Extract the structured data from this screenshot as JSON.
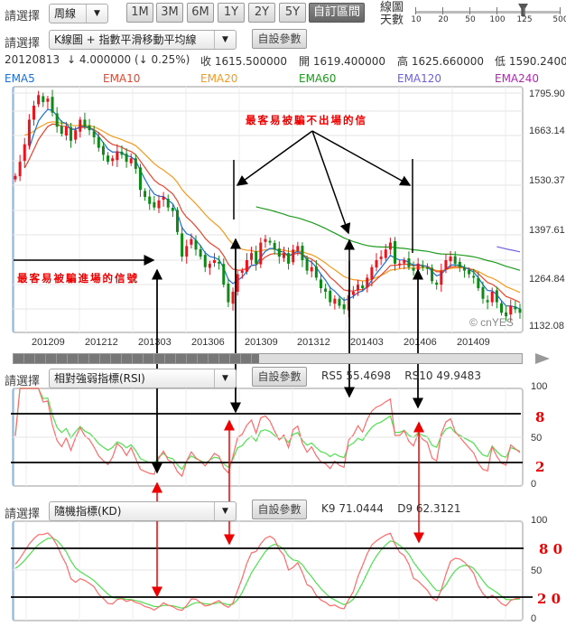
{
  "toolbar": {
    "select_label": "請選擇",
    "period_value": "周線",
    "ranges": [
      "1M",
      "3M",
      "6M",
      "1Y",
      "2Y",
      "5Y",
      "自訂區間"
    ],
    "active_range": "自訂區間",
    "days_label": "線圖\n天數",
    "days_ticks": [
      "10",
      "20",
      "50",
      "100",
      "125",
      "500"
    ],
    "days_selected": "125",
    "chart_type_value": "K線圖 + 指數平滑移動平均線",
    "custom_params": "自設參數"
  },
  "quote": {
    "date": "20120813",
    "change": "↓ 4.000000 (↓ 0.25%)",
    "close": "收 1615.500000",
    "open": "開 1619.400000",
    "high": "高 1625.660000",
    "low": "低 1590.24000"
  },
  "ema_legend": [
    {
      "label": "EMA5",
      "color": "#1a6fd6"
    },
    {
      "label": "EMA10",
      "color": "#e8452c"
    },
    {
      "label": "EMA20",
      "color": "#f59a1b"
    },
    {
      "label": "EMA60",
      "color": "#1e9a1e"
    },
    {
      "label": "EMA120",
      "color": "#6b5fe0"
    },
    {
      "label": "EMA240",
      "color": "#b02ab0"
    }
  ],
  "price_axis": [
    "1795.90",
    "1663.14",
    "1530.37",
    "1397.61",
    "1264.84",
    "1132.08"
  ],
  "date_axis": [
    "201209",
    "201212",
    "201303",
    "201306",
    "201309",
    "201312",
    "201403",
    "201406",
    "201409"
  ],
  "watermark": "© cnYES",
  "weekly_close": [
    1560,
    1600,
    1650,
    1720,
    1760,
    1790,
    1770,
    1780,
    1740,
    1700,
    1680,
    1700,
    1660,
    1690,
    1720,
    1700,
    1690,
    1670,
    1640,
    1620,
    1600,
    1610,
    1630,
    1620,
    1600,
    1610,
    1580,
    1520,
    1500,
    1480,
    1470,
    1490,
    1500,
    1470,
    1460,
    1400,
    1330,
    1360,
    1380,
    1350,
    1330,
    1300,
    1310,
    1320,
    1310,
    1250,
    1200,
    1230,
    1280,
    1290,
    1320,
    1340,
    1310,
    1370,
    1380,
    1370,
    1350,
    1330,
    1340,
    1310,
    1350,
    1360,
    1320,
    1290,
    1300,
    1270,
    1240,
    1230,
    1200,
    1210,
    1190,
    1180,
    1220,
    1230,
    1250,
    1240,
    1270,
    1300,
    1320,
    1330,
    1350,
    1370,
    1310,
    1310,
    1320,
    1300,
    1290,
    1310,
    1300,
    1295,
    1260,
    1250,
    1290,
    1320,
    1330,
    1310,
    1300,
    1290,
    1280,
    1270,
    1240,
    1210,
    1200,
    1230,
    1200,
    1170,
    1160,
    1190,
    1180,
    1170
  ],
  "candle_colors": {
    "up": "#e8141e",
    "down": "#0e8a16"
  },
  "rsi": {
    "select_value": "相對強弱指標(RSI)",
    "values_text": "RS5 55.4698    RS10 49.9483",
    "axis": [
      "100",
      "50",
      "0"
    ],
    "marks": [
      "8",
      "2"
    ]
  },
  "kd": {
    "select_value": "隨機指標(KD)",
    "values_text": "K9 71.0444    D9 62.3121",
    "axis": [
      "100",
      "50",
      "0"
    ],
    "marks": [
      "8 0",
      "2 0"
    ]
  },
  "annotations": {
    "exit_trap": "最客易被騙不出場的信",
    "entry_trap": "最客易被騙進場的信號"
  }
}
